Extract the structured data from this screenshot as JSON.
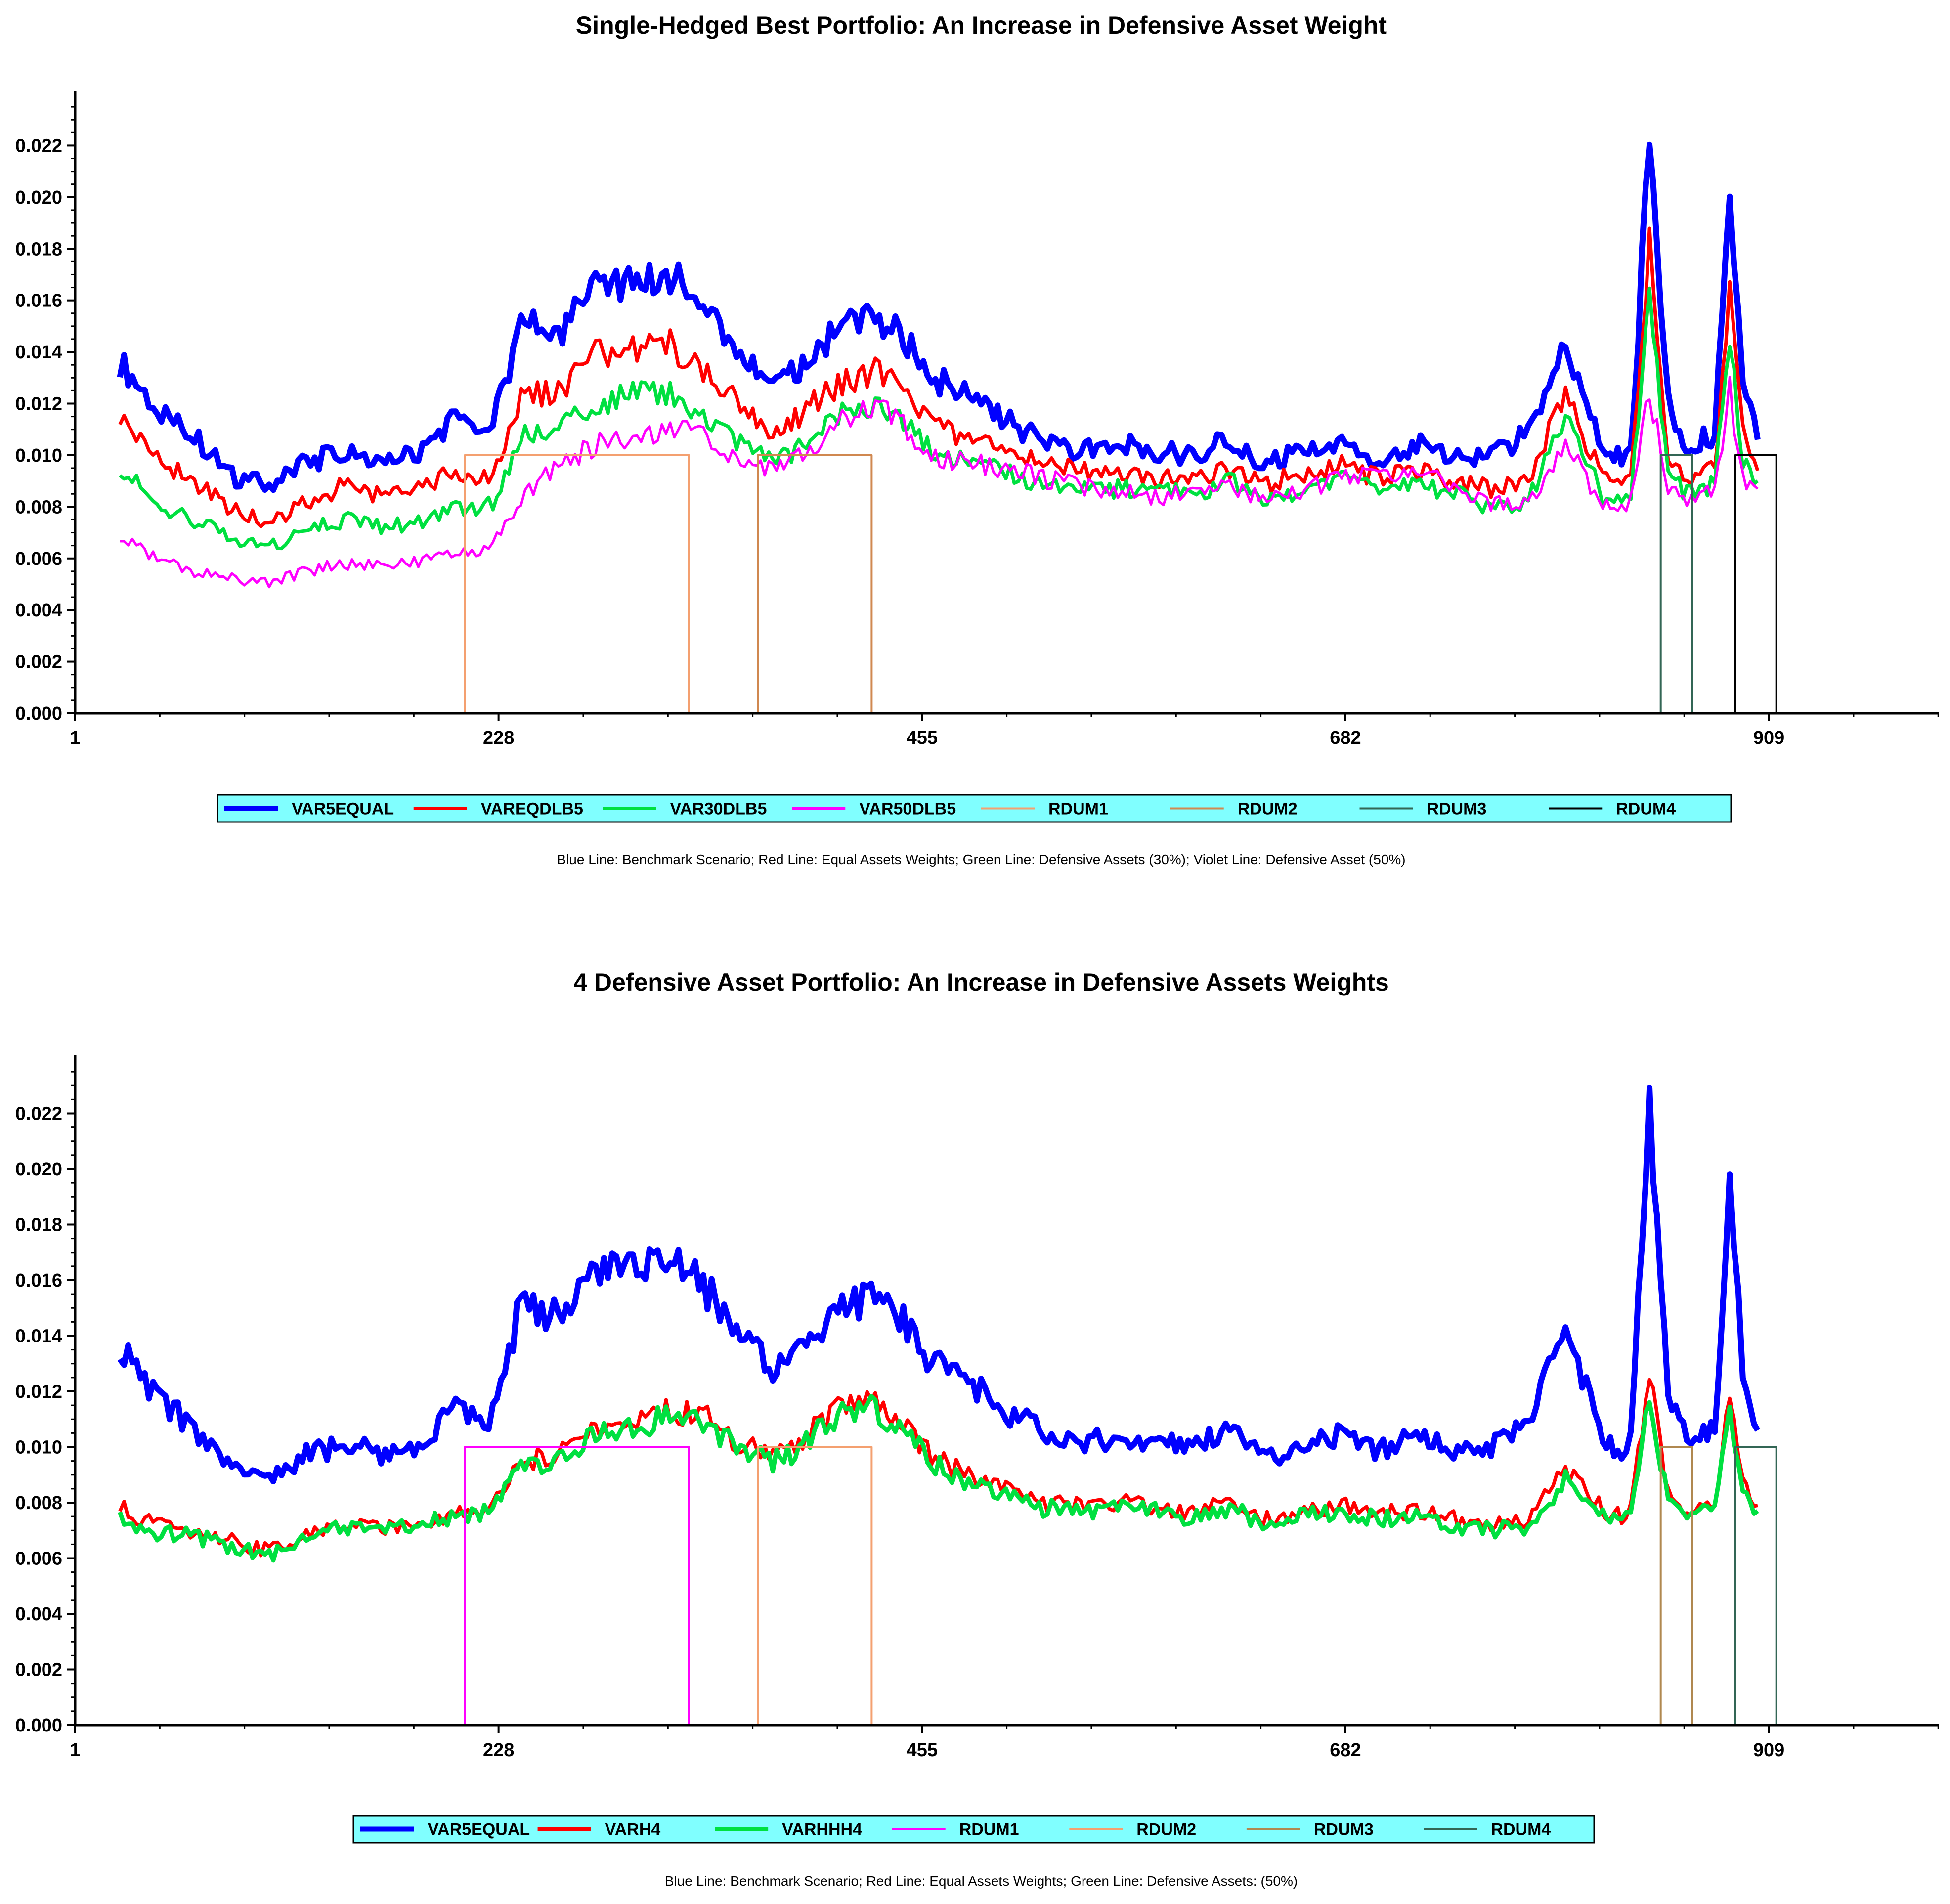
{
  "chart_data": [
    {
      "type": "line",
      "title": "Single-Hedged Best Portfolio: An Increase in Defensive Asset Weight",
      "xlabel": "",
      "ylabel": "",
      "x_ticks": [
        "1",
        "228",
        "455",
        "682",
        "909"
      ],
      "xlim": [
        1,
        1000
      ],
      "y_ticks": [
        "0.000",
        "0.002",
        "0.004",
        "0.006",
        "0.008",
        "0.010",
        "0.012",
        "0.014",
        "0.016",
        "0.018",
        "0.020",
        "0.022"
      ],
      "ylim": [
        0,
        0.024
      ],
      "grid": false,
      "legend_position": "bottom",
      "caption": "Blue Line: Benchmark Scenario; Red Line: Equal Assets Weights; Green Line: Defensive Assets (30%); Violet Line: Defensive Asset (50%)",
      "x": [
        25,
        45,
        65,
        85,
        105,
        125,
        145,
        165,
        185,
        205,
        218,
        225,
        240,
        260,
        280,
        300,
        320,
        340,
        360,
        375,
        385,
        395,
        410,
        430,
        445,
        460,
        480,
        500,
        520,
        540,
        560,
        580,
        600,
        620,
        640,
        660,
        680,
        700,
        720,
        740,
        760,
        780,
        800,
        820,
        830,
        835,
        845,
        855,
        865,
        872,
        880,
        888,
        895,
        903
      ],
      "series": [
        {
          "name": "VAR5EQUAL",
          "color": "#0000ff",
          "width": 12,
          "values": [
            0.0136,
            0.0118,
            0.0107,
            0.0092,
            0.0088,
            0.0097,
            0.0101,
            0.0097,
            0.0101,
            0.0115,
            0.0108,
            0.0111,
            0.0152,
            0.0147,
            0.0165,
            0.0166,
            0.017,
            0.0156,
            0.0138,
            0.0128,
            0.0131,
            0.0138,
            0.0148,
            0.0155,
            0.0145,
            0.013,
            0.0124,
            0.0113,
            0.0106,
            0.0101,
            0.0104,
            0.0102,
            0.0099,
            0.0107,
            0.0096,
            0.0102,
            0.0104,
            0.0099,
            0.0104,
            0.01,
            0.01,
            0.0108,
            0.0142,
            0.0104,
            0.0098,
            0.0103,
            0.022,
            0.012,
            0.0101,
            0.0106,
            0.0108,
            0.0196,
            0.0128,
            0.0106
          ]
        },
        {
          "name": "VAREQDLB5",
          "color": "#ff0000",
          "width": 7,
          "values": [
            0.0115,
            0.0098,
            0.009,
            0.0079,
            0.0073,
            0.0082,
            0.0088,
            0.0084,
            0.0088,
            0.0093,
            0.0091,
            0.0092,
            0.0122,
            0.0125,
            0.0139,
            0.014,
            0.0143,
            0.0132,
            0.0117,
            0.011,
            0.0112,
            0.0119,
            0.0127,
            0.0133,
            0.0124,
            0.0112,
            0.0107,
            0.0101,
            0.0097,
            0.0094,
            0.0092,
            0.0091,
            0.009,
            0.0095,
            0.0089,
            0.0093,
            0.0096,
            0.0091,
            0.0094,
            0.009,
            0.0087,
            0.0089,
            0.0125,
            0.009,
            0.0087,
            0.009,
            0.0182,
            0.01,
            0.0091,
            0.0093,
            0.0095,
            0.0165,
            0.0108,
            0.0094
          ]
        },
        {
          "name": "VAR30DLB5",
          "color": "#00e040",
          "width": 7,
          "values": [
            0.0096,
            0.008,
            0.0075,
            0.0067,
            0.0064,
            0.0071,
            0.0075,
            0.0072,
            0.0074,
            0.0079,
            0.008,
            0.0081,
            0.0108,
            0.011,
            0.012,
            0.0123,
            0.0124,
            0.0114,
            0.0102,
            0.0097,
            0.01,
            0.0108,
            0.0115,
            0.0121,
            0.0113,
            0.0102,
            0.0097,
            0.0093,
            0.0088,
            0.0086,
            0.0087,
            0.0086,
            0.0085,
            0.009,
            0.0083,
            0.0087,
            0.009,
            0.0087,
            0.0089,
            0.0085,
            0.008,
            0.0082,
            0.0117,
            0.0084,
            0.0081,
            0.0084,
            0.0158,
            0.0093,
            0.0085,
            0.0087,
            0.0089,
            0.0146,
            0.0099,
            0.009
          ]
        },
        {
          "name": "VAR50DLB5",
          "color": "#ff00ff",
          "width": 5,
          "values": [
            0.0068,
            0.006,
            0.0055,
            0.0052,
            0.0051,
            0.0055,
            0.0058,
            0.0057,
            0.0059,
            0.0062,
            0.0063,
            0.0065,
            0.0084,
            0.0096,
            0.0104,
            0.0108,
            0.011,
            0.0107,
            0.0097,
            0.0095,
            0.0099,
            0.0102,
            0.0112,
            0.012,
            0.0112,
            0.01,
            0.0097,
            0.0095,
            0.0091,
            0.0088,
            0.0086,
            0.0084,
            0.0085,
            0.0088,
            0.0083,
            0.0086,
            0.0092,
            0.0093,
            0.0094,
            0.0087,
            0.0082,
            0.008,
            0.0105,
            0.008,
            0.0079,
            0.0082,
            0.0125,
            0.0086,
            0.0082,
            0.0084,
            0.0085,
            0.0125,
            0.009,
            0.0087
          ]
        },
        {
          "name": "RDUM1",
          "color": "#f4a070",
          "width": 4,
          "step": true,
          "x": [
            1,
            210,
            210,
            330,
            330,
            1000
          ],
          "values": [
            0,
            0,
            0.01,
            0.01,
            0,
            0
          ]
        },
        {
          "name": "RDUM2",
          "color": "#d08850",
          "width": 4,
          "step": true,
          "x": [
            1,
            367,
            367,
            428,
            428,
            1000
          ],
          "values": [
            0,
            0,
            0.01,
            0.01,
            0,
            0
          ]
        },
        {
          "name": "RDUM3",
          "color": "#336655",
          "width": 4,
          "step": true,
          "x": [
            1,
            851,
            851,
            868,
            868,
            1000
          ],
          "values": [
            0,
            0,
            0.01,
            0.01,
            0,
            0
          ]
        },
        {
          "name": "RDUM4",
          "color": "#000000",
          "width": 4,
          "step": true,
          "x": [
            1,
            891,
            891,
            913,
            913,
            1000
          ],
          "values": [
            0,
            0,
            0.01,
            0.01,
            0,
            0
          ]
        }
      ]
    },
    {
      "type": "line",
      "title": "4 Defensive Asset Portfolio: An Increase in Defensive Assets Weights",
      "xlabel": "",
      "ylabel": "",
      "x_ticks": [
        "1",
        "228",
        "455",
        "682",
        "909"
      ],
      "xlim": [
        1,
        1000
      ],
      "y_ticks": [
        "0.000",
        "0.002",
        "0.004",
        "0.006",
        "0.008",
        "0.010",
        "0.012",
        "0.014",
        "0.016",
        "0.018",
        "0.020",
        "0.022"
      ],
      "ylim": [
        0,
        0.024
      ],
      "grid": false,
      "legend_position": "bottom",
      "caption": "Blue Line: Benchmark Scenario; Red Line: Equal Assets Weights; Green Line: Defensive Assets: (50%)",
      "x": [
        25,
        45,
        65,
        85,
        105,
        125,
        145,
        165,
        185,
        205,
        218,
        225,
        240,
        260,
        280,
        300,
        320,
        340,
        360,
        375,
        385,
        395,
        410,
        430,
        445,
        460,
        480,
        500,
        520,
        540,
        560,
        580,
        600,
        620,
        640,
        660,
        680,
        700,
        720,
        740,
        760,
        780,
        800,
        820,
        830,
        835,
        845,
        855,
        865,
        872,
        880,
        888,
        895,
        903
      ],
      "series": [
        {
          "name": "VAR5EQUAL",
          "color": "#0000ff",
          "width": 12,
          "values": [
            0.0136,
            0.0118,
            0.0107,
            0.0092,
            0.0088,
            0.0097,
            0.0101,
            0.0097,
            0.0101,
            0.0115,
            0.0108,
            0.0111,
            0.0152,
            0.0147,
            0.0165,
            0.0166,
            0.017,
            0.0156,
            0.0138,
            0.0128,
            0.0131,
            0.0138,
            0.0148,
            0.0155,
            0.0145,
            0.013,
            0.0124,
            0.0113,
            0.0106,
            0.0101,
            0.0104,
            0.0102,
            0.0099,
            0.0107,
            0.0096,
            0.0102,
            0.0104,
            0.0099,
            0.0104,
            0.01,
            0.01,
            0.0108,
            0.0142,
            0.0104,
            0.0098,
            0.0103,
            0.022,
            0.012,
            0.0101,
            0.0106,
            0.0108,
            0.0196,
            0.0128,
            0.0106
          ]
        },
        {
          "name": "VARH4",
          "color": "#ff0000",
          "width": 7,
          "values": [
            0.0078,
            0.0072,
            0.007,
            0.0066,
            0.0063,
            0.0068,
            0.0072,
            0.0071,
            0.0072,
            0.0077,
            0.0077,
            0.0081,
            0.0094,
            0.0098,
            0.0106,
            0.0108,
            0.0114,
            0.011,
            0.01,
            0.0097,
            0.0098,
            0.0105,
            0.0113,
            0.0117,
            0.0109,
            0.0097,
            0.0089,
            0.0085,
            0.008,
            0.0079,
            0.008,
            0.0079,
            0.0076,
            0.008,
            0.0074,
            0.0077,
            0.0079,
            0.0076,
            0.0077,
            0.0074,
            0.0072,
            0.0073,
            0.0092,
            0.0077,
            0.0075,
            0.0078,
            0.0125,
            0.0083,
            0.0078,
            0.008,
            0.008,
            0.0118,
            0.0088,
            0.0079
          ]
        },
        {
          "name": "VARHHH4",
          "color": "#00e040",
          "width": 9,
          "values": [
            0.0074,
            0.0069,
            0.0068,
            0.0064,
            0.0061,
            0.0067,
            0.0071,
            0.007,
            0.0071,
            0.0076,
            0.0076,
            0.0079,
            0.0092,
            0.0096,
            0.0104,
            0.0106,
            0.0112,
            0.0108,
            0.0098,
            0.0095,
            0.0097,
            0.0104,
            0.0111,
            0.0114,
            0.0106,
            0.0095,
            0.0087,
            0.0083,
            0.0078,
            0.0077,
            0.0078,
            0.0077,
            0.0074,
            0.0078,
            0.0072,
            0.0075,
            0.0077,
            0.0074,
            0.0075,
            0.0072,
            0.007,
            0.0071,
            0.0088,
            0.0075,
            0.0073,
            0.0076,
            0.0118,
            0.008,
            0.0076,
            0.0078,
            0.0078,
            0.0112,
            0.0085,
            0.0077
          ]
        },
        {
          "name": "RDUM1",
          "color": "#ff00ff",
          "width": 4,
          "step": true,
          "x": [
            1,
            210,
            210,
            330,
            330,
            1000
          ],
          "values": [
            0,
            0,
            0.01,
            0.01,
            0,
            0
          ]
        },
        {
          "name": "RDUM2",
          "color": "#f4a070",
          "width": 4,
          "step": true,
          "x": [
            1,
            367,
            367,
            428,
            428,
            1000
          ],
          "values": [
            0,
            0,
            0.01,
            0.01,
            0,
            0
          ]
        },
        {
          "name": "RDUM3",
          "color": "#b08850",
          "width": 4,
          "step": true,
          "x": [
            1,
            851,
            851,
            868,
            868,
            1000
          ],
          "values": [
            0,
            0,
            0.01,
            0.01,
            0,
            0
          ]
        },
        {
          "name": "RDUM4",
          "color": "#336655",
          "width": 4,
          "step": true,
          "x": [
            1,
            891,
            891,
            913,
            913,
            1000
          ],
          "values": [
            0,
            0,
            0.01,
            0.01,
            0,
            0
          ]
        }
      ]
    }
  ]
}
